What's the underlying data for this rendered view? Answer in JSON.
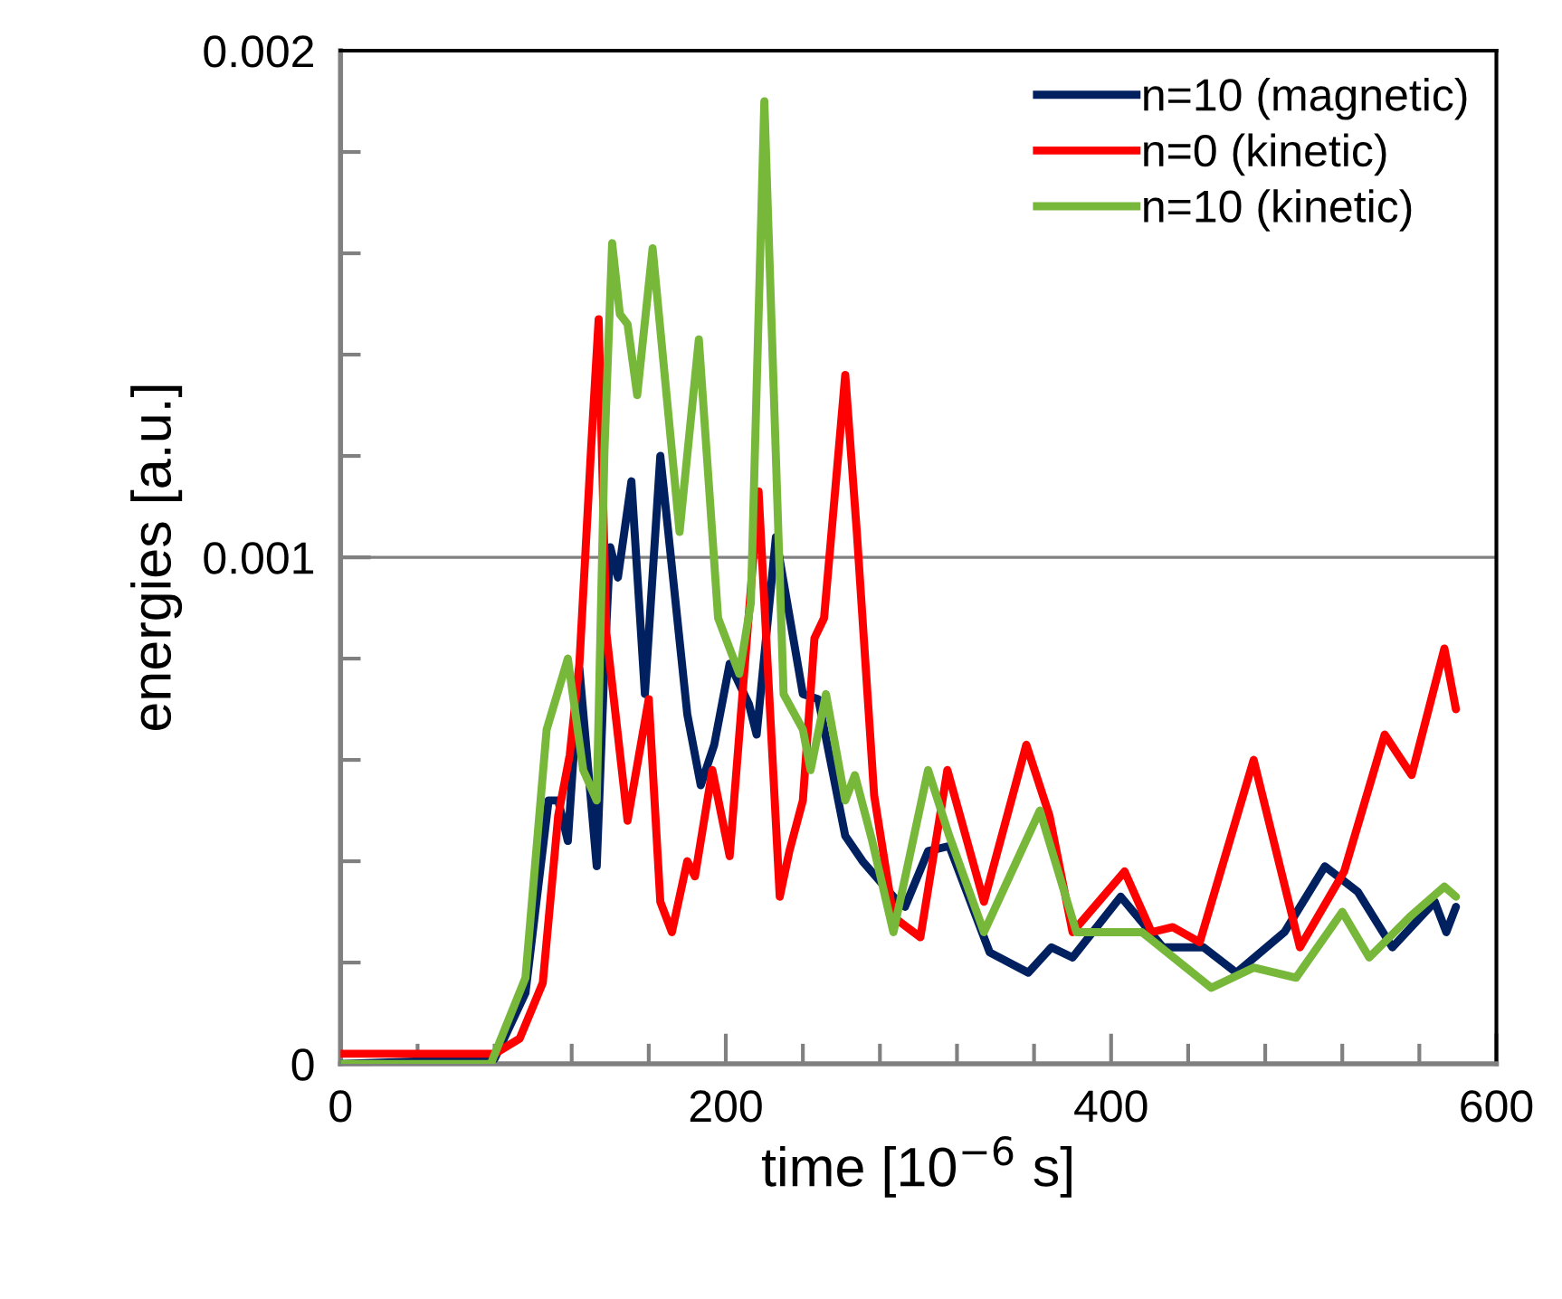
{
  "chart_data": {
    "type": "line",
    "xlabel": "time [10$^{−6}$ s]",
    "ylabel": "energies [a.u.]",
    "xlim": [
      0,
      600
    ],
    "ylim": [
      0,
      0.002
    ],
    "xticks": [
      0,
      200,
      400,
      600
    ],
    "yticks": [
      0,
      0.001,
      0.002
    ],
    "grid": "y",
    "legend": "top right",
    "marker": "none",
    "line_style": "solid",
    "series": [
      {
        "name": "n=10 (magnetic)",
        "color": "#002060",
        "x": [
          0,
          80,
          96,
          108,
          113,
          118,
          124,
          133,
          137,
          140,
          144,
          151,
          158,
          166,
          180,
          187,
          194,
          202,
          212,
          216,
          226,
          240,
          248,
          262,
          271,
          287,
          293,
          305,
          316,
          337,
          357,
          369,
          380,
          405,
          427,
          448,
          465,
          490,
          511,
          528,
          546,
          568,
          574,
          579
        ],
        "values": [
          0,
          1e-05,
          0.00014,
          0.00052,
          0.00052,
          0.00044,
          0.00078,
          0.00039,
          0.00079,
          0.00102,
          0.00096,
          0.00115,
          0.00073,
          0.0012,
          0.00069,
          0.00055,
          0.00063,
          0.00079,
          0.00071,
          0.00065,
          0.00104,
          0.00073,
          0.00072,
          0.00045,
          0.0004,
          0.00033,
          0.00031,
          0.00042,
          0.00043,
          0.00022,
          0.00018,
          0.00023,
          0.00021,
          0.00033,
          0.00023,
          0.00023,
          0.00018,
          0.00026,
          0.00039,
          0.00034,
          0.00023,
          0.00032,
          0.00026,
          0.00031
        ]
      },
      {
        "name": "n=0 (kinetic)",
        "color": "#ff0000",
        "x": [
          0,
          80,
          93,
          105,
          113,
          119,
          124,
          130,
          134,
          138,
          149,
          160,
          166,
          172,
          180,
          184,
          193,
          202,
          217,
          228,
          233,
          240,
          246,
          251,
          262,
          268,
          277,
          287,
          301,
          315,
          334,
          356,
          368,
          380,
          407,
          421,
          432,
          446,
          474,
          498,
          521,
          542,
          556,
          573,
          579
        ],
        "values": [
          2e-05,
          2e-05,
          5e-05,
          0.00016,
          0.00049,
          0.00061,
          0.00079,
          0.00121,
          0.00147,
          0.00085,
          0.00048,
          0.00072,
          0.00032,
          0.00026,
          0.0004,
          0.00037,
          0.00058,
          0.00041,
          0.00113,
          0.00033,
          0.00042,
          0.00052,
          0.00084,
          0.00088,
          0.00136,
          0.00105,
          0.00053,
          0.00029,
          0.00025,
          0.00058,
          0.00032,
          0.00063,
          0.00049,
          0.00026,
          0.00038,
          0.00026,
          0.00027,
          0.00024,
          0.0006,
          0.00023,
          0.00038,
          0.00065,
          0.00057,
          0.00082,
          0.0007
        ]
      },
      {
        "name": "n=10 (kinetic)",
        "color": "#77b739",
        "x": [
          0,
          78,
          96,
          107,
          118,
          126,
          133,
          137,
          141,
          145,
          149,
          154,
          162,
          176,
          186,
          196,
          207,
          213,
          220,
          230,
          240,
          244,
          252,
          262,
          267,
          276,
          287,
          305,
          316,
          334,
          363,
          382,
          416,
          452,
          474,
          496,
          520,
          534,
          555,
          573,
          579
        ],
        "values": [
          0,
          0,
          0.00017,
          0.00066,
          0.0008,
          0.00058,
          0.00052,
          0.00121,
          0.00162,
          0.00148,
          0.00146,
          0.00132,
          0.00161,
          0.00105,
          0.00143,
          0.00088,
          0.00077,
          0.00091,
          0.0019,
          0.00073,
          0.00066,
          0.00058,
          0.00073,
          0.00052,
          0.00057,
          0.00044,
          0.00026,
          0.00058,
          0.00045,
          0.00026,
          0.0005,
          0.00026,
          0.00026,
          0.00015,
          0.00019,
          0.00017,
          0.0003,
          0.00021,
          0.00029,
          0.00035,
          0.00033
        ]
      }
    ]
  }
}
